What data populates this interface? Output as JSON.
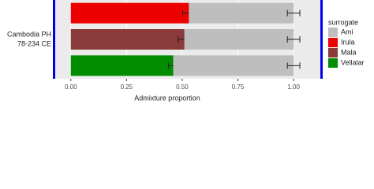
{
  "chart_data": {
    "type": "stacked_barh",
    "x_label": "Admixture proportion",
    "legend_title": "surrogate",
    "legend_position": "right",
    "group_label": [
      "Cambodia PH",
      "78-234 CE"
    ],
    "categories": [
      null,
      null,
      null
    ],
    "xlim": [
      -0.07,
      1.12
    ],
    "xticks": [
      {
        "value": 0,
        "label": "0.00"
      },
      0.25,
      {
        "value": 0.5,
        "label": "0.50"
      },
      0.75,
      {
        "value": 1,
        "label": "1.00"
      }
    ],
    "grid": true,
    "series": [
      {
        "name": "Ami",
        "color": "#bebebe",
        "values": [
          0.47,
          0.49,
          0.54
        ],
        "errors": [
          0.028,
          0.028,
          0.028
        ]
      },
      {
        "name": "Irula",
        "color": "#ee0000",
        "values": [
          0.53,
          null,
          null
        ],
        "errors": [
          0.028,
          null,
          null
        ]
      },
      {
        "name": "Mala",
        "color": "#8b3a3a",
        "values": [
          null,
          0.51,
          null
        ],
        "errors": [
          null,
          0.028,
          null
        ]
      },
      {
        "name": "Vellalar",
        "color": "#008b00",
        "values": [
          null,
          null,
          0.46
        ],
        "errors": [
          null,
          null,
          0.022
        ]
      }
    ],
    "stack_order": [
      1,
      2,
      3,
      0
    ]
  }
}
